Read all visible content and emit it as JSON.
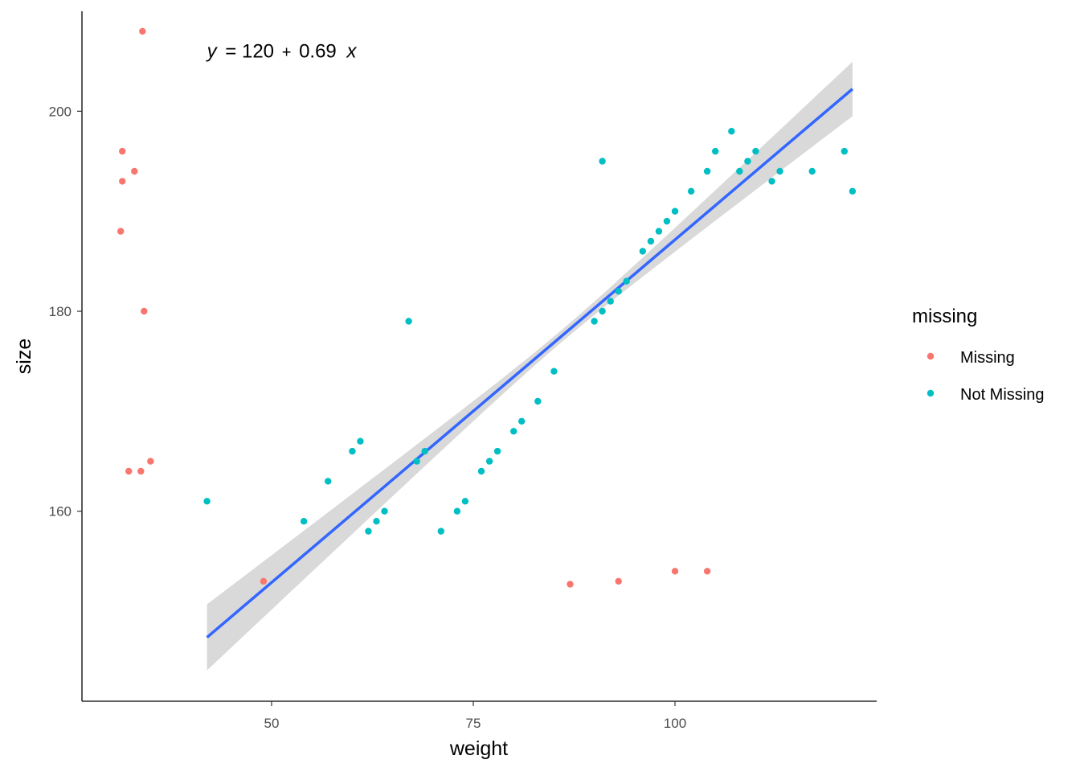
{
  "chart_data": {
    "type": "scatter",
    "xlabel": "weight",
    "ylabel": "size",
    "xlim": [
      26.5,
      125
    ],
    "ylim": [
      141,
      210
    ],
    "x_ticks": [
      50,
      75,
      100
    ],
    "y_ticks": [
      160,
      180,
      200
    ],
    "x_tick_labels": [
      "50",
      "75",
      "100"
    ],
    "y_tick_labels": [
      "160",
      "180",
      "200"
    ],
    "grid": false,
    "legend_title": "missing",
    "legend_position": "right",
    "annotation": {
      "y_var": "y",
      "equals": "= 120",
      "plus": "+",
      "slope": "0.69",
      "x_var": "x",
      "position_data": [
        42,
        206
      ]
    },
    "series": [
      {
        "name": "Missing",
        "color": "#F8766D",
        "points": [
          [
            34,
            208
          ],
          [
            31.5,
            196
          ],
          [
            31.5,
            193
          ],
          [
            33,
            194
          ],
          [
            31.3,
            188
          ],
          [
            34.2,
            180
          ],
          [
            32.3,
            164
          ],
          [
            33.8,
            164
          ],
          [
            35,
            165
          ],
          [
            49,
            153
          ],
          [
            87,
            152.7
          ],
          [
            93,
            153
          ],
          [
            100,
            154
          ],
          [
            104,
            154
          ]
        ]
      },
      {
        "name": "Not Missing",
        "color": "#00BFC4",
        "points": [
          [
            42,
            161
          ],
          [
            54,
            159
          ],
          [
            57,
            163
          ],
          [
            60,
            166
          ],
          [
            61,
            167
          ],
          [
            62,
            158
          ],
          [
            63,
            159
          ],
          [
            64,
            160
          ],
          [
            67,
            179
          ],
          [
            68,
            165
          ],
          [
            69,
            166
          ],
          [
            71,
            158
          ],
          [
            73,
            160
          ],
          [
            74,
            161
          ],
          [
            76,
            164
          ],
          [
            77,
            165
          ],
          [
            78,
            166
          ],
          [
            80,
            168
          ],
          [
            81,
            169
          ],
          [
            83,
            171
          ],
          [
            85,
            174
          ],
          [
            90,
            179
          ],
          [
            91,
            180
          ],
          [
            91,
            195
          ],
          [
            92,
            181
          ],
          [
            93,
            182
          ],
          [
            94,
            183
          ],
          [
            96,
            186
          ],
          [
            97,
            187
          ],
          [
            98,
            188
          ],
          [
            99,
            189
          ],
          [
            100,
            190
          ],
          [
            102,
            192
          ],
          [
            104,
            194
          ],
          [
            105,
            196
          ],
          [
            107,
            198
          ],
          [
            108,
            194
          ],
          [
            109,
            195
          ],
          [
            110,
            196
          ],
          [
            112,
            193
          ],
          [
            113,
            194
          ],
          [
            117,
            194
          ],
          [
            121,
            196
          ],
          [
            122,
            192
          ]
        ]
      }
    ],
    "fit": {
      "method": "lm",
      "color": "#3366FF",
      "band_color": "#d9d9d9",
      "x_range": [
        42,
        122
      ],
      "intercept": 118.6,
      "slope": 0.6855,
      "band_half_width_at_ends": 3.3,
      "band_half_width_at_center": 0.6,
      "x_center": 86
    }
  }
}
